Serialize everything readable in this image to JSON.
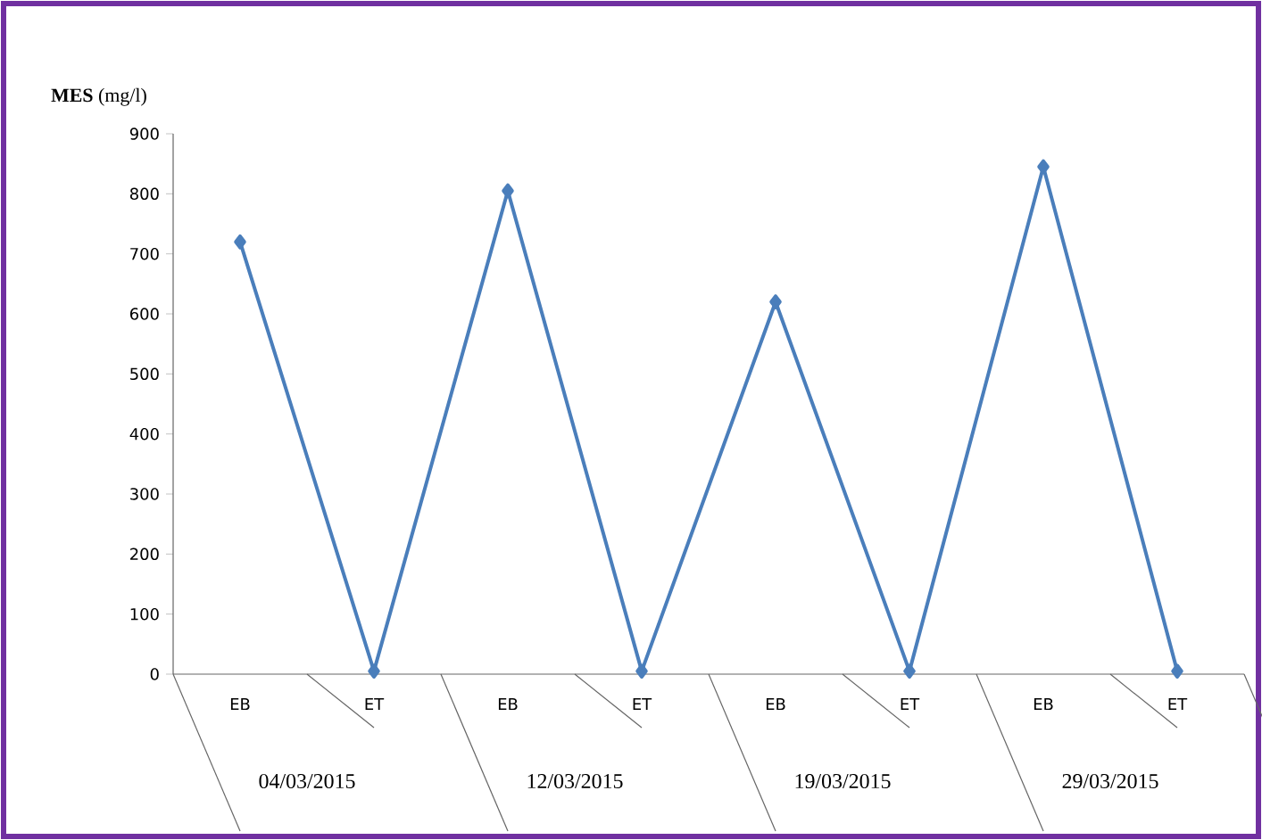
{
  "chart_data": {
    "type": "line",
    "ylabel": "**MES** (mg/l)",
    "categories": [
      "EB",
      "ET",
      "EB",
      "ET",
      "EB",
      "ET",
      "EB",
      "ET"
    ],
    "series": [
      {
        "color": "#4a7ebb",
        "values": [
          720,
          5,
          805,
          5,
          620,
          5,
          845,
          5
        ]
      }
    ],
    "ylim": [
      0,
      900
    ],
    "yticks": [
      0,
      100,
      200,
      300,
      400,
      500,
      600,
      700,
      800,
      900
    ],
    "marker": "diamond",
    "line_style": "solid",
    "annotations": [
      "04/03/2015",
      "12/03/2015",
      "19/03/2015",
      "29/03/2015"
    ]
  }
}
